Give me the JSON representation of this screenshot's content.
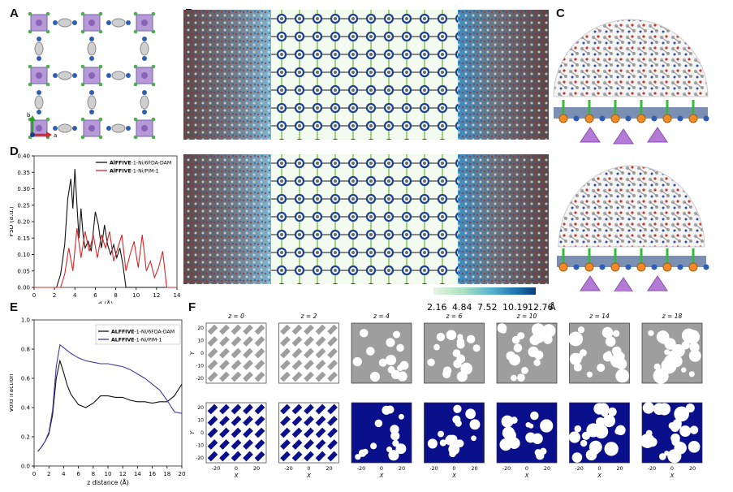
{
  "panels": {
    "a": "A",
    "b": "B",
    "c": "C",
    "d": "D",
    "e": "E",
    "f": "F"
  },
  "panel_a": {
    "axis_b": "b",
    "axis_a": "a"
  },
  "colorbar": {
    "ticks": [
      "2.16",
      "4.84",
      "7.52",
      "10.19",
      "12.76"
    ],
    "unit": "Å",
    "colors": [
      "#e6f5e1",
      "#a8dfc0",
      "#5bb6cf",
      "#1f78b4",
      "#0b3f7a"
    ]
  },
  "chart_data": [
    {
      "id": "D",
      "type": "line",
      "xlabel": "d (Å)",
      "ylabel": "PSD (a.u.)",
      "xlim": [
        0,
        14
      ],
      "ylim": [
        0,
        0.4
      ],
      "xticks": [
        "0",
        "2",
        "4",
        "6",
        "8",
        "10",
        "12",
        "14"
      ],
      "yticks": [
        "0.00",
        "0.05",
        "0.10",
        "0.15",
        "0.20",
        "0.25",
        "0.30",
        "0.35",
        "0.40"
      ],
      "legend": "top-right",
      "series": [
        {
          "name_bold": "AlFFIVE",
          "name_rest": "-1-Ni/6FDA-DAM",
          "color": "#111111",
          "x": [
            0,
            2.2,
            2.6,
            3.0,
            3.3,
            3.6,
            3.8,
            4.0,
            4.2,
            4.4,
            4.6,
            4.8,
            5.0,
            5.3,
            5.6,
            6.0,
            6.3,
            6.6,
            6.9,
            7.2,
            7.5,
            7.8,
            8.1,
            8.4,
            8.7,
            9.0,
            14
          ],
          "y": [
            0,
            0,
            0.04,
            0.13,
            0.27,
            0.33,
            0.24,
            0.36,
            0.25,
            0.15,
            0.24,
            0.16,
            0.12,
            0.14,
            0.11,
            0.23,
            0.19,
            0.12,
            0.19,
            0.13,
            0.1,
            0.13,
            0.09,
            0.12,
            0.07,
            0,
            0
          ]
        },
        {
          "name_bold": "AlFFIVE",
          "name_rest": "-1-Ni/PIM-1",
          "color": "#d62728",
          "x": [
            0,
            2.6,
            3.0,
            3.4,
            3.8,
            4.2,
            4.6,
            5.0,
            5.4,
            5.8,
            6.2,
            6.6,
            7.0,
            7.4,
            7.8,
            8.2,
            8.6,
            9.0,
            9.4,
            9.8,
            10.2,
            10.6,
            11.0,
            11.4,
            11.8,
            12.2,
            12.6,
            13.0,
            14
          ],
          "y": [
            0,
            0,
            0.04,
            0.12,
            0.05,
            0.18,
            0.09,
            0.17,
            0.11,
            0.16,
            0.09,
            0.16,
            0.12,
            0.17,
            0.08,
            0.12,
            0.16,
            0.05,
            0.1,
            0.14,
            0.06,
            0.16,
            0.05,
            0.08,
            0.03,
            0.06,
            0.11,
            0,
            0
          ]
        }
      ]
    },
    {
      "id": "E",
      "type": "line",
      "xlabel": "z distance (Å)",
      "ylabel": "Void fraction",
      "xlim": [
        0,
        20
      ],
      "ylim": [
        0,
        1.0
      ],
      "xticks": [
        "0",
        "2",
        "4",
        "6",
        "8",
        "10",
        "12",
        "14",
        "16",
        "18",
        "20"
      ],
      "yticks": [
        "0.0",
        "0.2",
        "0.4",
        "0.6",
        "0.8",
        "1.0"
      ],
      "legend": "top-right",
      "series": [
        {
          "name_bold": "ALFFIVE",
          "name_rest": "-1-Ni/6FDA-DAM",
          "color": "#111111",
          "x": [
            0.5,
            1,
            1.5,
            2,
            2.5,
            3,
            3.5,
            4,
            4.5,
            5,
            6,
            7,
            8,
            9,
            10,
            11,
            12,
            13,
            14,
            15,
            16,
            17,
            18,
            19,
            20
          ],
          "y": [
            0.1,
            0.13,
            0.17,
            0.22,
            0.35,
            0.6,
            0.72,
            0.64,
            0.55,
            0.49,
            0.42,
            0.4,
            0.43,
            0.48,
            0.48,
            0.47,
            0.47,
            0.45,
            0.44,
            0.44,
            0.43,
            0.44,
            0.44,
            0.48,
            0.56
          ]
        },
        {
          "name_bold": "ALFFIVE",
          "name_rest": "-1-Ni/PIM-1",
          "color": "#3b3a9e",
          "x": [
            0.5,
            1,
            1.5,
            2,
            2.5,
            3,
            3.5,
            4,
            4.5,
            5,
            6,
            7,
            8,
            9,
            10,
            11,
            12,
            13,
            14,
            15,
            16,
            17,
            18,
            19,
            20
          ],
          "y": [
            0.1,
            0.13,
            0.17,
            0.23,
            0.38,
            0.68,
            0.83,
            0.81,
            0.79,
            0.77,
            0.74,
            0.72,
            0.71,
            0.7,
            0.7,
            0.69,
            0.68,
            0.66,
            0.63,
            0.6,
            0.56,
            0.52,
            0.45,
            0.37,
            0.36
          ]
        }
      ]
    }
  ],
  "panel_f": {
    "z_labels": [
      "z = 0",
      "z = 2",
      "z = 4",
      "z = 6",
      "z = 10",
      "z = 14",
      "z = 18"
    ],
    "xlabel": "X",
    "ylabel": "Y",
    "xticks": [
      "-20",
      "0",
      "20"
    ],
    "yticks": [
      "20",
      "10",
      "0",
      "-10",
      "-20"
    ]
  }
}
